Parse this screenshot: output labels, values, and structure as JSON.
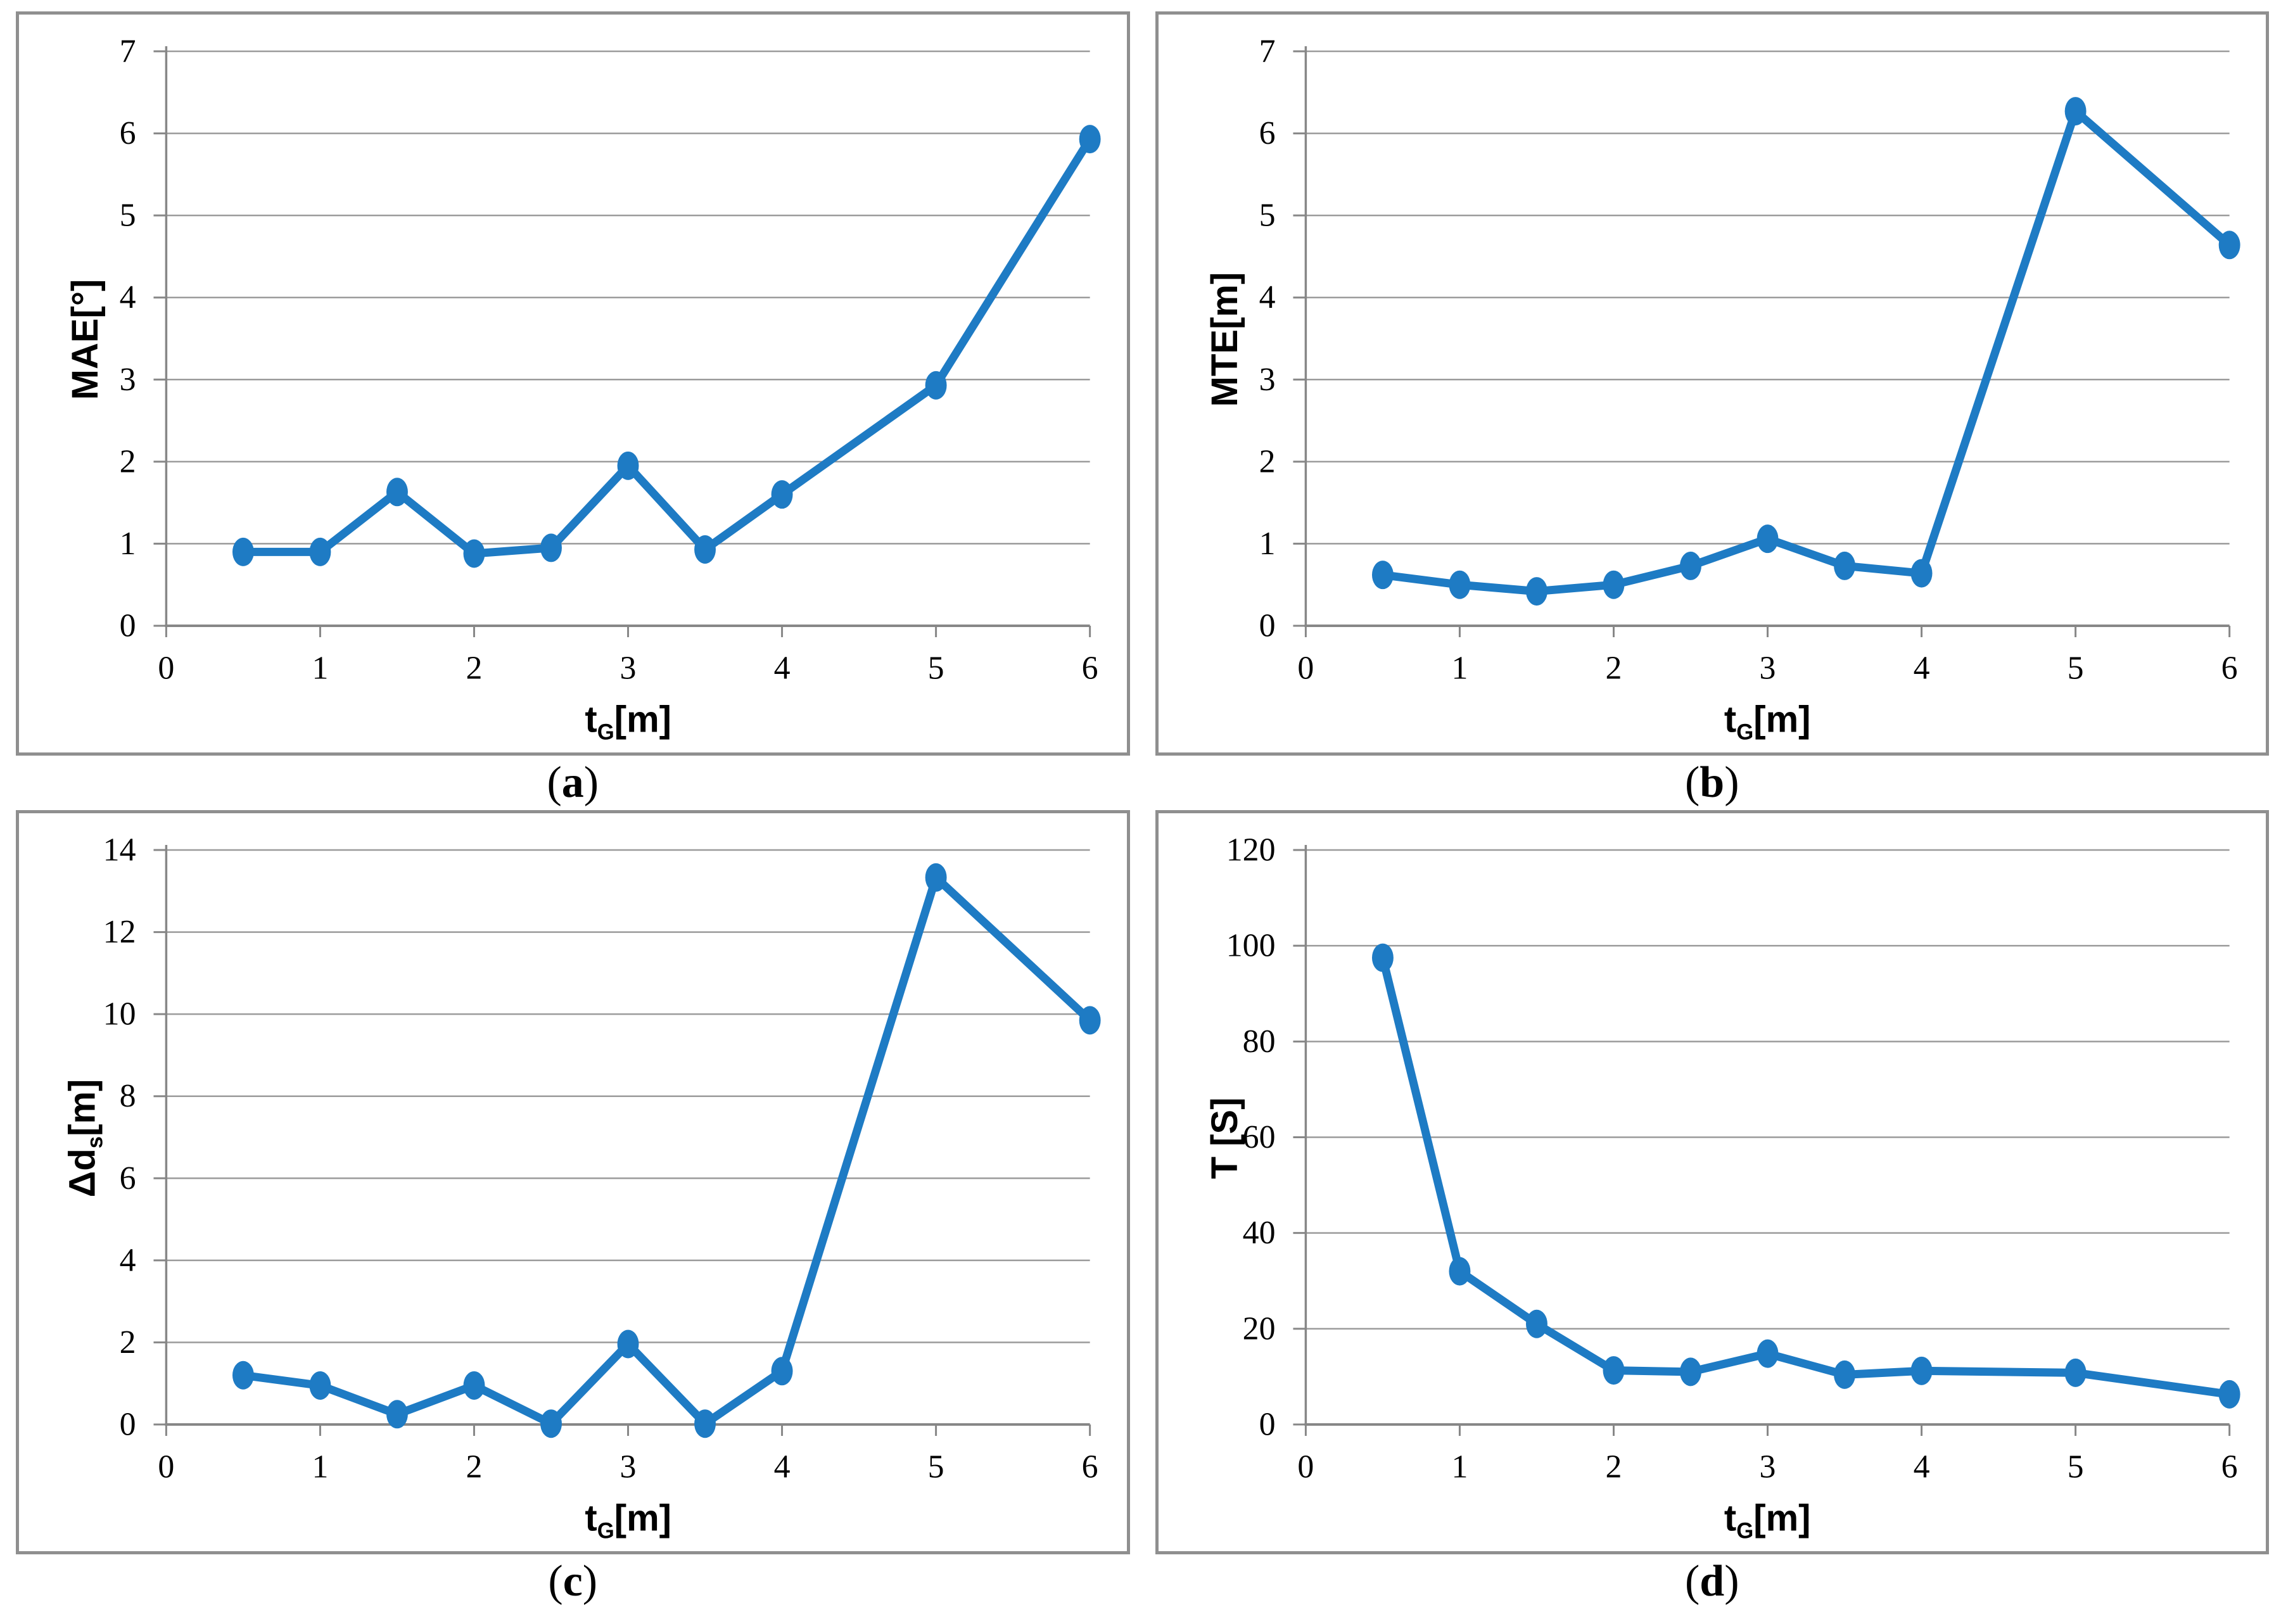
{
  "page": {
    "background": "#ffffff"
  },
  "styles": {
    "series_color": "#1e7bc4",
    "grid_color": "#9b9b9b",
    "axis_color": "#878787",
    "panel_border_color": "#8f8f8f",
    "text_color": "#000000"
  },
  "chart_data": [
    {
      "id": "a",
      "type": "line",
      "caption": {
        "open": "(",
        "letter": "a",
        "close": ")"
      },
      "ylabel": "MAE[°]",
      "xlabel": "tG[m]",
      "y_label_parts": [
        {
          "text": "MAE[°]"
        }
      ],
      "x_label_parts": [
        {
          "text": "t"
        },
        {
          "text": "G",
          "sub": true
        },
        {
          "text": "[m]"
        }
      ],
      "x": [
        0.5,
        1,
        1.5,
        2,
        2.5,
        3,
        3.5,
        4,
        5,
        6
      ],
      "y": [
        0.9,
        0.9,
        1.63,
        0.88,
        0.95,
        1.95,
        0.93,
        1.6,
        2.93,
        5.93
      ],
      "xlim": [
        0,
        6
      ],
      "ylim": [
        0,
        7
      ],
      "x_ticks": [
        0,
        1,
        2,
        3,
        4,
        5,
        6
      ],
      "y_ticks": [
        0,
        1,
        2,
        3,
        4,
        5,
        6,
        7
      ],
      "grid": "horizontal",
      "legend": "none"
    },
    {
      "id": "b",
      "type": "line",
      "caption": {
        "open": "(",
        "letter": "b",
        "close": ")"
      },
      "ylabel": "MTE[m]",
      "xlabel": "tG[m]",
      "y_label_parts": [
        {
          "text": "MTE[m]"
        }
      ],
      "x_label_parts": [
        {
          "text": "t"
        },
        {
          "text": "G",
          "sub": true
        },
        {
          "text": "[m]"
        }
      ],
      "x": [
        0.5,
        1,
        1.5,
        2,
        2.5,
        3,
        3.5,
        4,
        5,
        6
      ],
      "y": [
        0.62,
        0.5,
        0.42,
        0.5,
        0.73,
        1.06,
        0.73,
        0.64,
        6.27,
        4.64
      ],
      "xlim": [
        0,
        6
      ],
      "ylim": [
        0,
        7
      ],
      "x_ticks": [
        0,
        1,
        2,
        3,
        4,
        5,
        6
      ],
      "y_ticks": [
        0,
        1,
        2,
        3,
        4,
        5,
        6,
        7
      ],
      "grid": "horizontal",
      "legend": "none"
    },
    {
      "id": "c",
      "type": "line",
      "caption": {
        "open": "(",
        "letter": "c",
        "close": ")"
      },
      "ylabel": "Δds[m]",
      "xlabel": "tG[m]",
      "y_label_parts": [
        {
          "text": "Δd"
        },
        {
          "text": "s",
          "sub": true
        },
        {
          "text": "[m]"
        }
      ],
      "x_label_parts": [
        {
          "text": "t"
        },
        {
          "text": "G",
          "sub": true
        },
        {
          "text": "[m]"
        }
      ],
      "x": [
        0.5,
        1,
        1.5,
        2,
        2.5,
        3,
        3.5,
        4,
        5,
        6
      ],
      "y": [
        1.2,
        0.95,
        0.25,
        0.95,
        0.02,
        1.96,
        0.02,
        1.3,
        13.33,
        9.85
      ],
      "xlim": [
        0,
        6
      ],
      "ylim": [
        0,
        14
      ],
      "x_ticks": [
        0,
        1,
        2,
        3,
        4,
        5,
        6
      ],
      "y_ticks": [
        0,
        2,
        4,
        6,
        8,
        10,
        12,
        14
      ],
      "grid": "horizontal",
      "legend": "none"
    },
    {
      "id": "d",
      "type": "line",
      "caption": {
        "open": "(",
        "letter": "d",
        "close": ")"
      },
      "ylabel": "T [S]",
      "xlabel": "tG[m]",
      "y_label_parts": [
        {
          "text": "T [S]"
        }
      ],
      "x_label_parts": [
        {
          "text": "t"
        },
        {
          "text": "G",
          "sub": true
        },
        {
          "text": "[m]"
        }
      ],
      "x": [
        0.5,
        1,
        1.5,
        2,
        2.5,
        3,
        3.5,
        4,
        5,
        6
      ],
      "y": [
        97.5,
        32,
        21,
        11.3,
        11,
        14.8,
        10.4,
        11.2,
        10.8,
        6.3
      ],
      "xlim": [
        0,
        6
      ],
      "ylim": [
        0,
        120
      ],
      "x_ticks": [
        0,
        1,
        2,
        3,
        4,
        5,
        6
      ],
      "y_ticks": [
        0,
        20,
        40,
        60,
        80,
        100,
        120
      ],
      "grid": "horizontal",
      "legend": "none"
    }
  ]
}
